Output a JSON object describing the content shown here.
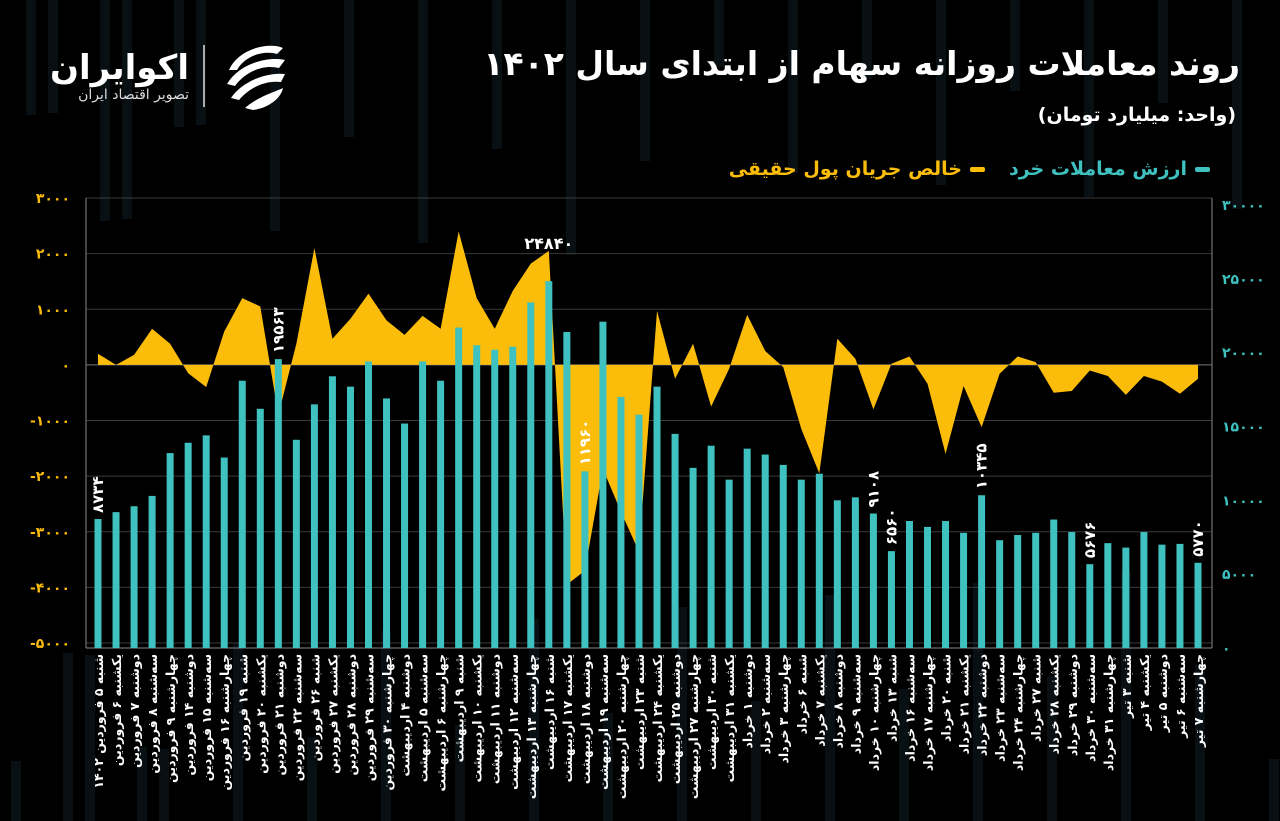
{
  "header": {
    "title": "روند معاملات روزانه سهام از ابتدای سال ۱۴۰۲",
    "subtitle": "(واحد: میلیارد تومان)",
    "logo_name": "اکوایران",
    "logo_tagline": "تصویر اقتصاد ایران",
    "logo_icon": "swirl-stripes-icon"
  },
  "colors": {
    "background": "#000000",
    "bars": "#3fc1c0",
    "area": "#fbbc0a",
    "text": "#ffffff",
    "grid": "#3a3a3a"
  },
  "chart_data": {
    "type": "bar+area",
    "title": "روند معاملات روزانه سهام از ابتدای سال ۱۴۰۲",
    "unit": "(واحد: میلیارد تومان)",
    "legend_placement": "top-right",
    "grid": true,
    "categories": [
      "شنبه ۵ فروردین ۱۴۰۲",
      "یکشنبه ۶ فروردین",
      "دوشنبه ۷ فروردین",
      "سه‌شنبه ۸ فروردین",
      "چهارشنبه ۹ فروردین",
      "دوشنبه ۱۴ فروردین",
      "سه‌شنبه ۱۵ فروردین",
      "چهارشنبه ۱۶ فروردین",
      "شنبه ۱۹ فروردین",
      "یکشنبه ۲۰ فروردین",
      "دوشنبه ۲۱ فروردین",
      "سه‌شنبه ۲۲ فروردین",
      "شنبه ۲۶ فروردین",
      "یکشنبه ۲۷ فروردین",
      "دوشنبه ۲۸ فروردین",
      "سه‌شنبه ۲۹ فروردین",
      "چهارشنبه ۳۰ فروردین",
      "دوشنبه ۴ اردیبهشت",
      "سه‌شنبه ۵ اردیبهشت",
      "چهارشنبه ۶ اردیبهشت",
      "شنبه ۹ اردیبهشت",
      "یکشنبه ۱۰ اردیبهشت",
      "دوشنبه ۱۱ اردیبهشت",
      "سه‌شنبه ۱۲ اردیبهشت",
      "چهارشنبه ۱۳ اردیبهشت",
      "شنبه ۱۶ اردیبهشت",
      "یکشنبه ۱۷ اردیبهشت",
      "دوشنبه ۱۸ اردیبهشت",
      "سه‌شنبه ۱۹ اردیبهشت",
      "چهارشنبه ۲۰ اردیبهشت",
      "شنبه ۲۳ اردیبهشت",
      "یکشنبه ۲۴ اردیبهشت",
      "دوشنبه ۲۵ اردیبهشت",
      "چهارشنبه ۲۷ اردیبهشت",
      "شنبه ۳۰ اردیبهشت",
      "یکشنبه ۳۱ اردیبهشت",
      "دوشنبه ۱ خرداد",
      "سه‌شنبه ۲ خرداد",
      "چهارشنبه ۳ خرداد",
      "شنبه ۶ خرداد",
      "یکشنبه ۷ خرداد",
      "دوشنبه ۸ خرداد",
      "سه‌شنبه ۹ خرداد",
      "چهارشنبه ۱۰ خرداد",
      "شنبه ۱۳ خرداد",
      "سه‌شنبه ۱۶ خرداد",
      "چهارشنبه ۱۷ خرداد",
      "شنبه ۲۰ خرداد",
      "یکشنبه ۲۱ خرداد",
      "دوشنبه ۲۲ خرداد",
      "سه‌شنبه ۲۳ خرداد",
      "چهارشنبه ۲۴ خرداد",
      "شنبه ۲۷ خرداد",
      "یکشنبه ۲۸ خرداد",
      "دوشنبه ۲۹ خرداد",
      "سه‌شنبه ۳۰ خرداد",
      "چهارشنبه ۳۱ خرداد",
      "شنبه ۳ تیر",
      "یکشنبه ۴ تیر",
      "دوشنبه ۵ تیر",
      "سه‌شنبه ۶ تیر",
      "چهارشنبه ۷ تیر"
    ],
    "series": [
      {
        "name": "ارزش معاملات خرد",
        "type": "bar",
        "axis": "right",
        "color": "#3fc1c0",
        "values": [
          8734,
          9200,
          9600,
          10300,
          13200,
          13900,
          14400,
          12900,
          18100,
          16200,
          19563,
          14100,
          16500,
          18400,
          17700,
          19400,
          16900,
          15200,
          19400,
          18100,
          21700,
          20500,
          20200,
          20400,
          23400,
          24840,
          21400,
          11960,
          22100,
          17000,
          15800,
          17700,
          14500,
          12200,
          13700,
          11400,
          13500,
          13100,
          12400,
          11400,
          11800,
          10000,
          10200,
          9108,
          6560,
          8600,
          8200,
          8600,
          7800,
          10345,
          7300,
          7650,
          7800,
          8700,
          7850,
          5676,
          7100,
          6800,
          7850,
          7000,
          7050,
          5770
        ]
      },
      {
        "name": "خالص جریان پول حقیقی",
        "type": "area",
        "axis": "left",
        "color": "#fbbc0a",
        "values": [
          200,
          0,
          180,
          650,
          380,
          -150,
          -400,
          600,
          1200,
          1050,
          -900,
          380,
          2100,
          470,
          830,
          1280,
          800,
          540,
          880,
          650,
          2400,
          1200,
          650,
          1330,
          1820,
          2050,
          -3950,
          -3700,
          -1870,
          -2640,
          -3360,
          970,
          -250,
          380,
          -750,
          -70,
          900,
          250,
          -40,
          -1150,
          -1950,
          470,
          110,
          -800,
          20,
          150,
          -340,
          -1600,
          -380,
          -1120,
          -160,
          150,
          50,
          -500,
          -470,
          -100,
          -200,
          -540,
          -200,
          -300,
          -520,
          -250
        ]
      }
    ],
    "left_axis": {
      "range": [
        -5000,
        3000
      ],
      "ticks": [
        "۳۰۰۰",
        "۲۰۰۰",
        "۱۰۰۰",
        "۰",
        "-۱۰۰۰",
        "-۲۰۰۰",
        "-۳۰۰۰",
        "-۴۰۰۰",
        "-۵۰۰۰"
      ],
      "tick_values": [
        3000,
        2000,
        1000,
        0,
        -1000,
        -2000,
        -3000,
        -4000,
        -5000
      ]
    },
    "right_axis": {
      "range": [
        0,
        30000
      ],
      "ticks": [
        "۳۰۰۰۰",
        "۲۵۰۰۰",
        "۲۰۰۰۰",
        "۱۵۰۰۰",
        "۱۰۰۰۰",
        "۵۰۰۰",
        "۰"
      ],
      "tick_values": [
        30000,
        25000,
        20000,
        15000,
        10000,
        5000,
        0
      ]
    },
    "data_labels": [
      {
        "index": 0,
        "text": "۸۷۳۴",
        "rotated": true
      },
      {
        "index": 10,
        "text": "۱۹۵۶۳",
        "rotated": true
      },
      {
        "index": 25,
        "text": "۲۴۸۴۰",
        "rotated": false
      },
      {
        "index": 27,
        "text": "۱۱۹۶۰",
        "rotated": true
      },
      {
        "index": 43,
        "text": "۹۱۰۸",
        "rotated": true
      },
      {
        "index": 44,
        "text": "۶۵۶۰",
        "rotated": true
      },
      {
        "index": 49,
        "text": "۱۰۳۴۵",
        "rotated": true
      },
      {
        "index": 55,
        "text": "۵۶۷۶",
        "rotated": true
      },
      {
        "index": 61,
        "text": "۵۷۷۰",
        "rotated": true
      }
    ]
  }
}
